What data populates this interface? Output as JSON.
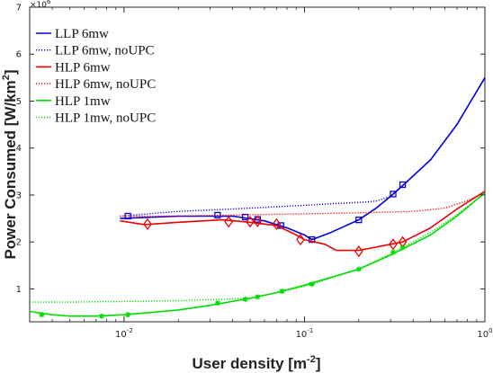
{
  "chart_data": {
    "type": "line",
    "xlabel": "User density [m",
    "xlabel_sup": "-2",
    "xlabel_tail": "]",
    "ylabel": "Power Consumed [W/km",
    "ylabel_sup": "2",
    "ylabel_tail": "]",
    "x_scale": "log",
    "xlim": [
      0.003,
      1
    ],
    "ylim": [
      0.3,
      7
    ],
    "y_multiplier": {
      "base": "×10",
      "exp": "6"
    },
    "grid": false,
    "legend_position": "top-left",
    "x_ticks": [
      {
        "value": 0.01,
        "base": "10",
        "exp": "-2"
      },
      {
        "value": 0.1,
        "base": "10",
        "exp": "-1"
      },
      {
        "value": 1,
        "base": "10",
        "exp": "0"
      }
    ],
    "y_ticks": [
      1,
      2,
      3,
      4,
      5,
      6,
      7
    ],
    "series": [
      {
        "name": "LLP 6mw",
        "color": "#0000dd",
        "style": "solid",
        "marker": "square",
        "points": [
          [
            0.0095,
            2.5
          ],
          [
            0.02,
            2.55
          ],
          [
            0.04,
            2.55
          ],
          [
            0.06,
            2.45
          ],
          [
            0.08,
            2.3
          ],
          [
            0.1,
            2.15
          ],
          [
            0.11,
            2.05
          ],
          [
            0.14,
            2.2
          ],
          [
            0.2,
            2.47
          ],
          [
            0.25,
            2.72
          ],
          [
            0.3,
            2.97
          ],
          [
            0.35,
            3.2
          ],
          [
            0.5,
            3.75
          ],
          [
            0.7,
            4.5
          ],
          [
            1.0,
            5.5
          ],
          [
            1.05,
            5.6
          ]
        ],
        "markers": [
          [
            0.0105,
            2.55
          ],
          [
            0.033,
            2.57
          ],
          [
            0.047,
            2.53
          ],
          [
            0.055,
            2.48
          ],
          [
            0.074,
            2.35
          ],
          [
            0.11,
            2.05
          ],
          [
            0.2,
            2.47
          ],
          [
            0.31,
            3.02
          ],
          [
            0.35,
            3.22
          ]
        ]
      },
      {
        "name": "LLP 6mw, noUPC",
        "color": "#0000dd",
        "style": "dotted",
        "marker": "none",
        "points": [
          [
            0.0095,
            2.55
          ],
          [
            0.02,
            2.65
          ],
          [
            0.05,
            2.72
          ],
          [
            0.1,
            2.78
          ],
          [
            0.15,
            2.82
          ],
          [
            0.22,
            2.85
          ],
          [
            0.25,
            2.87
          ],
          [
            0.3,
            2.97
          ],
          [
            0.35,
            3.2
          ],
          [
            0.5,
            3.75
          ],
          [
            0.7,
            4.5
          ],
          [
            1.0,
            5.5
          ],
          [
            1.05,
            5.6
          ]
        ],
        "markers": []
      },
      {
        "name": "HLP 6mw",
        "color": "#ee0000",
        "style": "solid",
        "marker": "diamond",
        "points": [
          [
            0.0095,
            2.45
          ],
          [
            0.013,
            2.37
          ],
          [
            0.02,
            2.42
          ],
          [
            0.035,
            2.47
          ],
          [
            0.05,
            2.42
          ],
          [
            0.07,
            2.35
          ],
          [
            0.09,
            2.15
          ],
          [
            0.1,
            2.05
          ],
          [
            0.13,
            1.95
          ],
          [
            0.15,
            1.82
          ],
          [
            0.2,
            1.82
          ],
          [
            0.3,
            1.95
          ],
          [
            0.35,
            2.0
          ],
          [
            0.5,
            2.3
          ],
          [
            0.7,
            2.7
          ],
          [
            1.0,
            3.08
          ],
          [
            1.05,
            3.12
          ]
        ],
        "markers": [
          [
            0.0135,
            2.38
          ],
          [
            0.038,
            2.43
          ],
          [
            0.05,
            2.43
          ],
          [
            0.055,
            2.44
          ],
          [
            0.07,
            2.38
          ],
          [
            0.095,
            2.05
          ],
          [
            0.2,
            1.8
          ],
          [
            0.31,
            1.95
          ],
          [
            0.35,
            2.0
          ]
        ]
      },
      {
        "name": "HLP 6mw, noUPC",
        "color": "#ee0000",
        "style": "dotted",
        "marker": "none",
        "points": [
          [
            0.0095,
            2.55
          ],
          [
            0.02,
            2.55
          ],
          [
            0.05,
            2.58
          ],
          [
            0.1,
            2.6
          ],
          [
            0.2,
            2.62
          ],
          [
            0.4,
            2.65
          ],
          [
            0.6,
            2.72
          ],
          [
            0.8,
            2.88
          ],
          [
            1.0,
            3.05
          ],
          [
            1.05,
            3.1
          ]
        ],
        "markers": []
      },
      {
        "name": "HLP 1mw",
        "color": "#00dd00",
        "style": "solid",
        "marker": "star",
        "points": [
          [
            0.003,
            0.52
          ],
          [
            0.004,
            0.45
          ],
          [
            0.005,
            0.42
          ],
          [
            0.007,
            0.42
          ],
          [
            0.01,
            0.45
          ],
          [
            0.02,
            0.55
          ],
          [
            0.03,
            0.65
          ],
          [
            0.05,
            0.8
          ],
          [
            0.07,
            0.92
          ],
          [
            0.1,
            1.08
          ],
          [
            0.2,
            1.42
          ],
          [
            0.3,
            1.72
          ],
          [
            0.5,
            2.15
          ],
          [
            0.7,
            2.55
          ],
          [
            1.0,
            3.05
          ],
          [
            1.05,
            3.12
          ]
        ],
        "markers": [
          [
            0.0035,
            0.45
          ],
          [
            0.0075,
            0.42
          ],
          [
            0.0105,
            0.45
          ],
          [
            0.033,
            0.7
          ],
          [
            0.047,
            0.78
          ],
          [
            0.055,
            0.83
          ],
          [
            0.075,
            0.95
          ],
          [
            0.11,
            1.1
          ],
          [
            0.2,
            1.42
          ],
          [
            0.31,
            1.78
          ],
          [
            0.35,
            1.88
          ]
        ]
      },
      {
        "name": "HLP 1mw, noUPC",
        "color": "#00dd00",
        "style": "dotted",
        "marker": "none",
        "points": [
          [
            0.003,
            0.72
          ],
          [
            0.005,
            0.72
          ],
          [
            0.01,
            0.73
          ],
          [
            0.02,
            0.75
          ],
          [
            0.05,
            0.8
          ],
          [
            0.1,
            1.05
          ],
          [
            0.2,
            1.42
          ],
          [
            0.3,
            1.75
          ],
          [
            0.5,
            2.2
          ],
          [
            0.7,
            2.58
          ],
          [
            1.0,
            3.05
          ],
          [
            1.05,
            3.12
          ]
        ],
        "markers": []
      }
    ]
  }
}
